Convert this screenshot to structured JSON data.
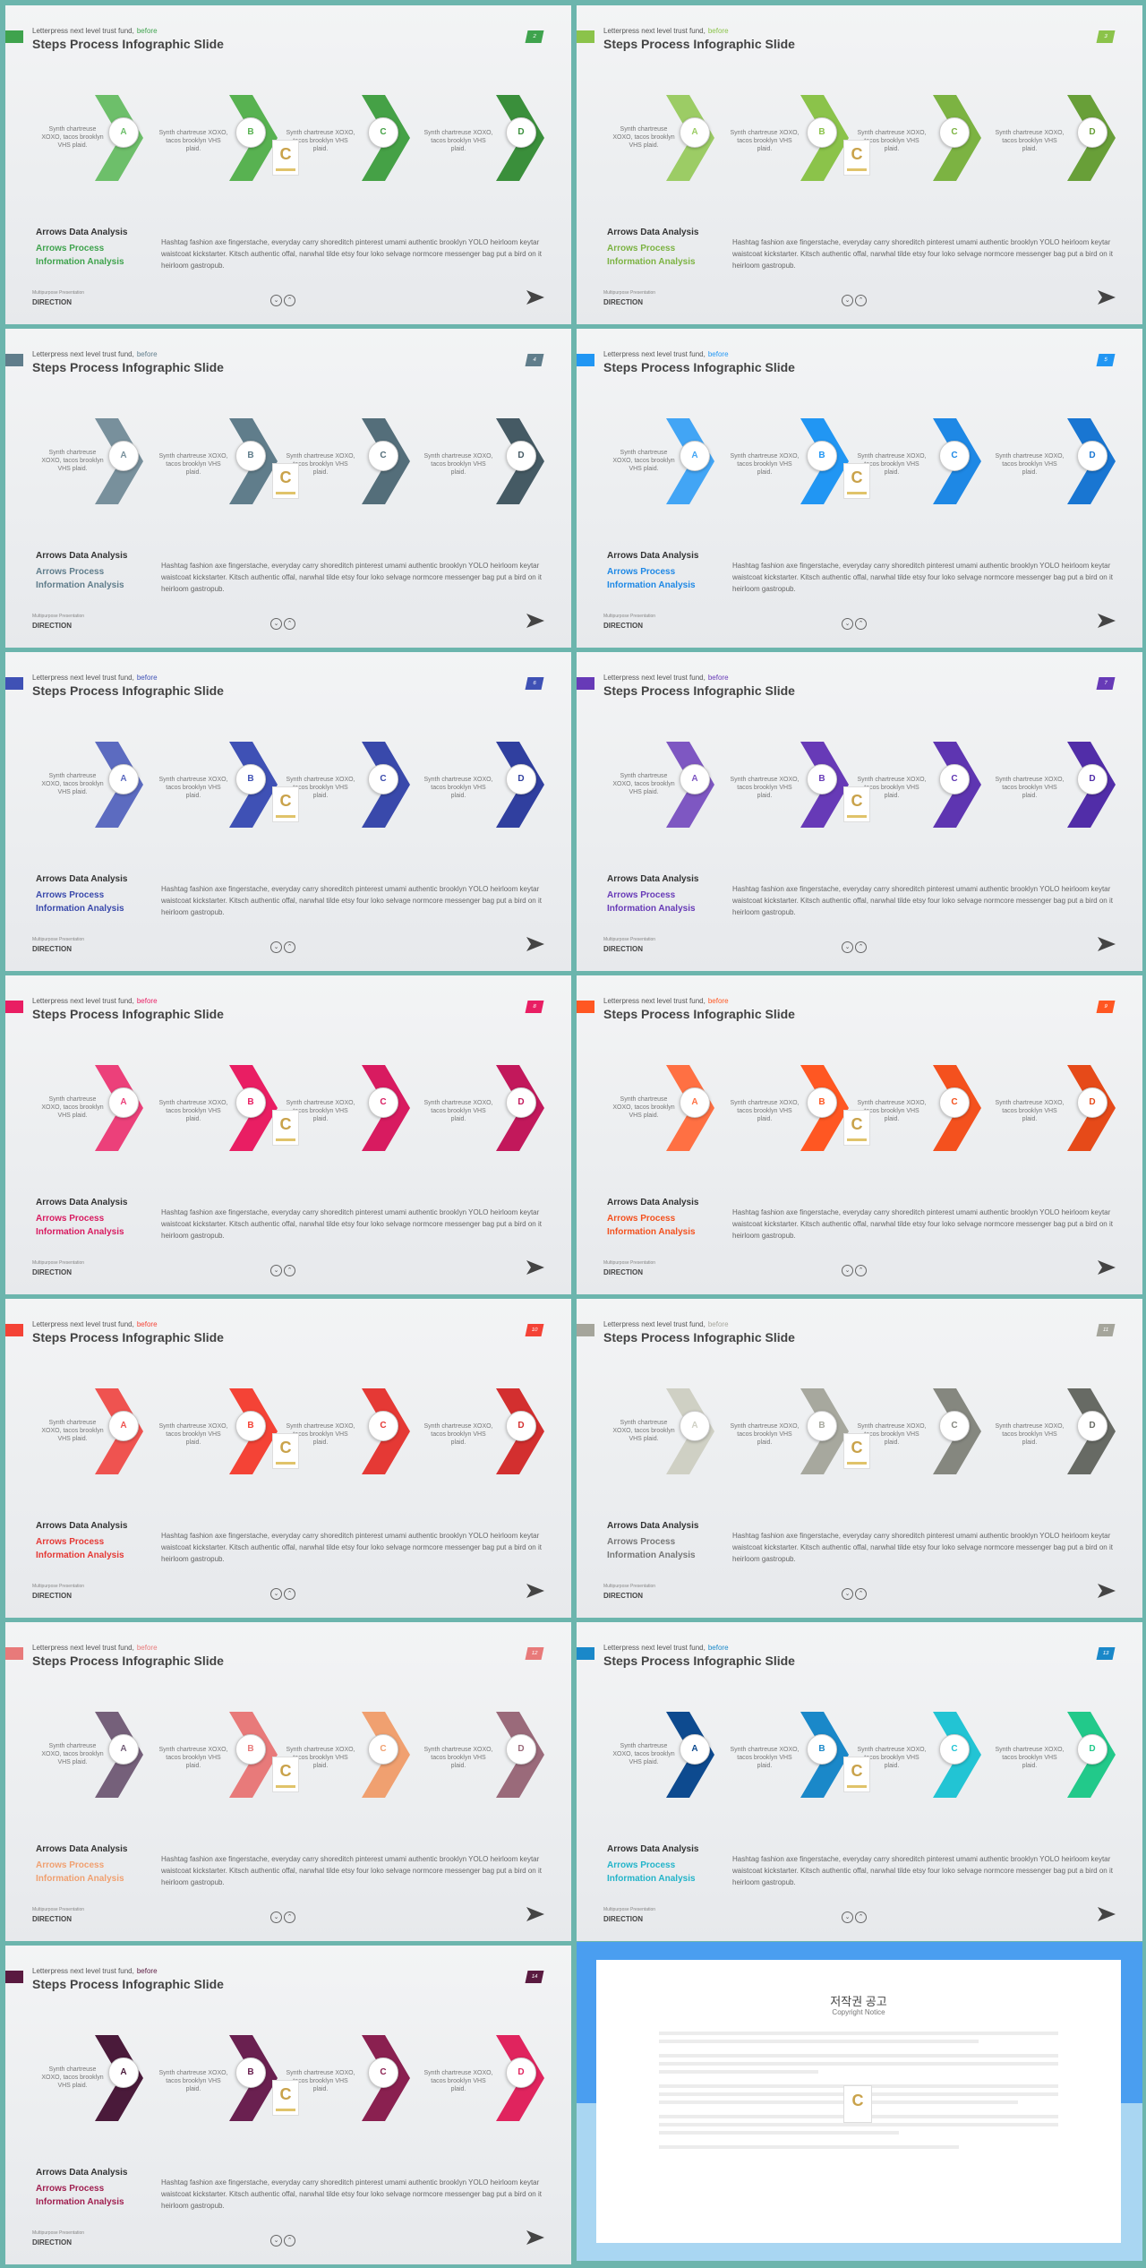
{
  "common": {
    "kicker": "Letterpress next level trust fund,",
    "kicker_highlight": "before",
    "title": "Steps Process Infographic Slide",
    "steps": [
      "A",
      "B",
      "C",
      "D"
    ],
    "captions": [
      "Synth chartreuse XOXO, tacos brooklyn VHS plaid.",
      "Synth chartreuse XOXO, tacos brooklyn VHS plaid.",
      "Synth chartreuse XOXO, tacos brooklyn VHS plaid.",
      "Synth chartreuse XOXO, tacos brooklyn VHS plaid."
    ],
    "analysis_title": "Arrows Data Analysis",
    "analysis_line1": "Arrows Process",
    "analysis_line2": "Information Analysis",
    "body": "Hashtag fashion axe fingerstache, everyday carry shoreditch pinterest umami authentic brooklyn YOLO heirloom keytar waistcoat kickstarter. Kitsch authentic offal, narwhal tilde etsy four loko selvage normcore messenger bag put a bird on it heirloom gastropub.",
    "footer_small": "Multipurpose Presentation",
    "footer_label": "DIRECTION",
    "logo_letter": "C",
    "nav_prev": "⌄",
    "nav_next": "⌃"
  },
  "slides": [
    {
      "page": "2",
      "accent": "#3fa34d",
      "arrows": [
        "#6dbf6a",
        "#58b251",
        "#45a146",
        "#3a8f3b"
      ],
      "sub_color": "#3fa34d"
    },
    {
      "page": "3",
      "accent": "#8bc34a",
      "arrows": [
        "#9ccc65",
        "#8bc34a",
        "#7cb342",
        "#689f38"
      ],
      "sub_color": "#7cb342"
    },
    {
      "page": "4",
      "accent": "#607d8b",
      "arrows": [
        "#78909c",
        "#607d8b",
        "#546e7a",
        "#455a64"
      ],
      "sub_color": "#607d8b"
    },
    {
      "page": "5",
      "accent": "#2196f3",
      "arrows": [
        "#42a5f5",
        "#2196f3",
        "#1e88e5",
        "#1976d2"
      ],
      "sub_color": "#1e88e5"
    },
    {
      "page": "6",
      "accent": "#3f51b5",
      "arrows": [
        "#5c6bc0",
        "#3f51b5",
        "#3949ab",
        "#303f9f"
      ],
      "sub_color": "#3949ab"
    },
    {
      "page": "7",
      "accent": "#673ab7",
      "arrows": [
        "#7e57c2",
        "#673ab7",
        "#5e35b1",
        "#512da8"
      ],
      "sub_color": "#673ab7"
    },
    {
      "page": "8",
      "accent": "#e91e63",
      "arrows": [
        "#ec407a",
        "#e91e63",
        "#d81b60",
        "#c2185b"
      ],
      "sub_color": "#d81b60"
    },
    {
      "page": "9",
      "accent": "#ff5722",
      "arrows": [
        "#ff7043",
        "#ff5722",
        "#f4511e",
        "#e64a19"
      ],
      "sub_color": "#f4511e"
    },
    {
      "page": "10",
      "accent": "#f44336",
      "arrows": [
        "#ef5350",
        "#f44336",
        "#e53935",
        "#d32f2f"
      ],
      "sub_color": "#e53935"
    },
    {
      "page": "11",
      "accent": "#a5a59b",
      "arrows": [
        "#cfd0c4",
        "#a7a89e",
        "#85877f",
        "#676a64"
      ],
      "sub_color": "#777777"
    },
    {
      "page": "12",
      "accent": "#e87a7a",
      "arrows": [
        "#75607a",
        "#e87a7a",
        "#f0a070",
        "#9a6a7a"
      ],
      "sub_color": "#f0a070"
    },
    {
      "page": "13",
      "accent": "#1a88c9",
      "arrows": [
        "#0d4a8f",
        "#1a88c9",
        "#22c4d4",
        "#22c98a"
      ],
      "sub_color": "#22b4c9"
    },
    {
      "page": "14",
      "accent": "#5a1a40",
      "arrows": [
        "#4a1a3a",
        "#6a2050",
        "#8a2050",
        "#e0245e"
      ],
      "sub_color": "#a02050"
    }
  ],
  "notice": {
    "title": "저작권 공고",
    "subtitle": "Copyright Notice"
  }
}
